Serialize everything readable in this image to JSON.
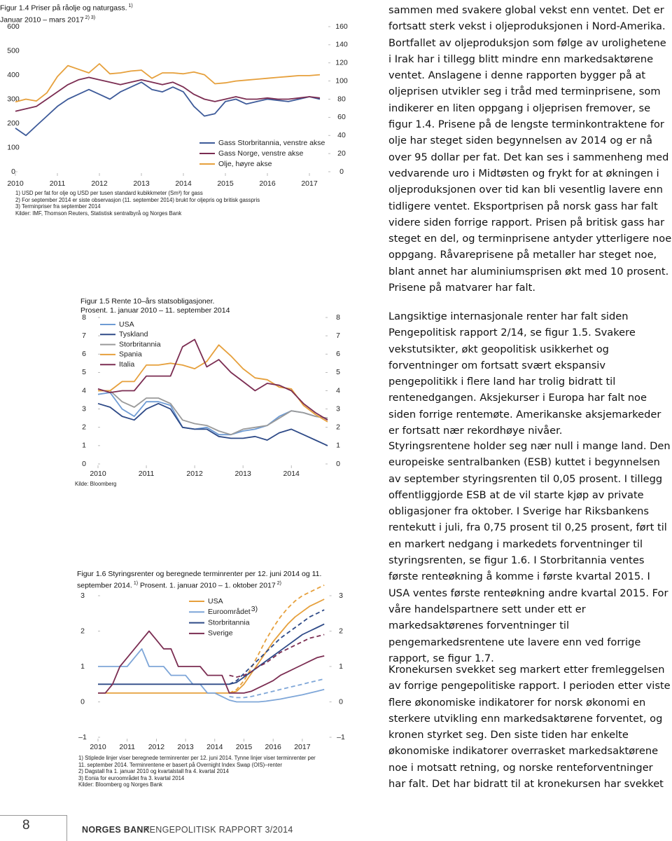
{
  "chart_data": [
    {
      "type": "line",
      "title": "Figur 1.4 Priser på råolje og naturgass.",
      "title_note": "1)",
      "subtitle": "Januar 2010 – mars 2017",
      "subtitle_note": "2) 3)",
      "x": [
        2010,
        2010.25,
        2010.5,
        2010.75,
        2011,
        2011.25,
        2011.5,
        2011.75,
        2012,
        2012.25,
        2012.5,
        2012.75,
        2013,
        2013.25,
        2013.5,
        2013.75,
        2014,
        2014.25,
        2014.5,
        2014.75,
        2015,
        2015.25,
        2015.5,
        2015.75,
        2016,
        2016.25,
        2016.5,
        2016.75,
        2017,
        2017.25
      ],
      "xlim": [
        2010,
        2017.5
      ],
      "xticks": [
        2010,
        2011,
        2012,
        2013,
        2014,
        2015,
        2016,
        2017
      ],
      "ylim": [
        0,
        600
      ],
      "yticks": [
        0,
        100,
        200,
        300,
        400,
        500,
        600
      ],
      "y2lim": [
        0,
        160
      ],
      "y2ticks": [
        0,
        20,
        40,
        60,
        80,
        100,
        120,
        140,
        160
      ],
      "series": [
        {
          "name": "Gass Storbritannia, venstre akse",
          "color": "#3d5a99",
          "values": [
            180,
            150,
            190,
            230,
            270,
            300,
            320,
            340,
            320,
            300,
            330,
            350,
            370,
            340,
            330,
            350,
            330,
            270,
            230,
            240,
            290,
            300,
            280,
            290,
            300,
            295,
            290,
            300,
            310,
            300
          ]
        },
        {
          "name": "Gass Norge, venstre akse",
          "color": "#7b2d52",
          "values": [
            250,
            260,
            270,
            300,
            330,
            360,
            380,
            390,
            380,
            370,
            360,
            370,
            380,
            370,
            360,
            370,
            350,
            320,
            300,
            290,
            300,
            310,
            300,
            300,
            305,
            300,
            300,
            305,
            310,
            305
          ]
        },
        {
          "name": "Olje, høyre akse",
          "color": "#e6a03c",
          "axis": "y2",
          "values": [
            77,
            80,
            78,
            87,
            105,
            117,
            113,
            109,
            119,
            108,
            109,
            111,
            112,
            103,
            109,
            109,
            108,
            110,
            107,
            97,
            98,
            100,
            101,
            102,
            103,
            104,
            105,
            106,
            106,
            107
          ]
        }
      ],
      "notes": [
        "1) USD per fat for olje og USD per tusen standard kubikkmeter (Sm³) for gass",
        "2) For september 2014 er siste observasjon (11. september 2014) brukt for oljepris og britisk gasspris",
        "3) Terminpriser fra september 2014"
      ],
      "source": "Kilder: IMF, Thomson Reuters, Statistisk sentralbyrå og Norges Bank"
    },
    {
      "type": "line",
      "title": "Figur 1.5 Rente 10–års statsobligasjoner.",
      "subtitle": "Prosent. 1. januar 2010 – 11. september 2014",
      "x": [
        2010,
        2010.25,
        2010.5,
        2010.75,
        2011,
        2011.25,
        2011.5,
        2011.75,
        2012,
        2012.25,
        2012.5,
        2012.75,
        2013,
        2013.25,
        2013.5,
        2013.75,
        2014,
        2014.25,
        2014.5,
        2014.75
      ],
      "xlim": [
        2010,
        2014.75
      ],
      "xticks": [
        2010,
        2011,
        2012,
        2013,
        2014
      ],
      "ylim": [
        0,
        8
      ],
      "yticks": [
        0,
        1,
        2,
        3,
        4,
        5,
        6,
        7,
        8
      ],
      "y2lim": [
        0,
        8
      ],
      "y2ticks": [
        0,
        1,
        2,
        3,
        4,
        5,
        6,
        7,
        8
      ],
      "series": [
        {
          "name": "USA",
          "color": "#6e9bd4",
          "values": [
            3.8,
            3.9,
            3.0,
            2.6,
            3.4,
            3.4,
            3.2,
            2.0,
            1.9,
            2.0,
            1.6,
            1.6,
            1.8,
            1.9,
            2.1,
            2.6,
            2.9,
            2.8,
            2.6,
            2.5
          ]
        },
        {
          "name": "Tyskland",
          "color": "#2e4a87",
          "values": [
            3.3,
            3.1,
            2.6,
            2.4,
            3.0,
            3.3,
            3.0,
            2.0,
            1.9,
            1.9,
            1.5,
            1.4,
            1.4,
            1.5,
            1.3,
            1.7,
            1.9,
            1.6,
            1.3,
            1.0
          ]
        },
        {
          "name": "Storbritannia",
          "color": "#9a9a9a",
          "values": [
            4.0,
            4.0,
            3.4,
            3.1,
            3.6,
            3.6,
            3.3,
            2.4,
            2.2,
            2.1,
            1.8,
            1.6,
            1.9,
            2.0,
            2.1,
            2.5,
            2.9,
            2.8,
            2.6,
            2.5
          ]
        },
        {
          "name": "Spania",
          "color": "#e6a03c",
          "values": [
            4.0,
            4.0,
            4.5,
            4.5,
            5.4,
            5.4,
            5.5,
            5.4,
            5.2,
            5.6,
            6.5,
            5.9,
            5.2,
            4.7,
            4.6,
            4.2,
            4.1,
            3.2,
            2.7,
            2.3
          ]
        },
        {
          "name": "Italia",
          "color": "#7b2d52",
          "values": [
            4.1,
            3.9,
            4.0,
            4.0,
            4.8,
            4.8,
            4.8,
            6.4,
            6.8,
            5.3,
            5.7,
            5.0,
            4.5,
            4.0,
            4.4,
            4.3,
            4.0,
            3.3,
            2.8,
            2.4
          ]
        }
      ],
      "source": "Kilde: Bloomberg"
    },
    {
      "type": "line",
      "title": "Figur 1.6 Styringsrenter og beregnede terminrenter per 12. juni 2014 og 11. september 2014.",
      "title_note": "1)",
      "subtitle": "Prosent. 1. januar 2010 – 1. oktober 2017",
      "subtitle_note": "2)",
      "x": [
        2010,
        2010.25,
        2010.5,
        2010.75,
        2011,
        2011.25,
        2011.5,
        2011.75,
        2012,
        2012.25,
        2012.5,
        2012.75,
        2013,
        2013.25,
        2013.5,
        2013.75,
        2014,
        2014.25,
        2014.5,
        2014.75,
        2015,
        2015.25,
        2015.5,
        2015.75,
        2016,
        2016.25,
        2016.5,
        2016.75,
        2017,
        2017.25,
        2017.5,
        2017.75
      ],
      "xlim": [
        2010,
        2018
      ],
      "xticks": [
        2010,
        2011,
        2012,
        2013,
        2014,
        2015,
        2016,
        2017
      ],
      "ylim": [
        -1,
        3
      ],
      "yticks": [
        {
          "value": -1,
          "label": "–1"
        },
        0,
        1,
        2,
        3
      ],
      "y2lim": [
        -1,
        3
      ],
      "y2ticks": [
        {
          "value": -1,
          "label": "–1"
        },
        0,
        1,
        2,
        3
      ],
      "series": [
        {
          "name": "USA",
          "color": "#e6a03c",
          "values": [
            0.25,
            0.25,
            0.25,
            0.25,
            0.25,
            0.25,
            0.25,
            0.25,
            0.25,
            0.25,
            0.25,
            0.25,
            0.25,
            0.25,
            0.25,
            0.25,
            0.25,
            0.25,
            0.25,
            0.3,
            0.5,
            0.8,
            1.1,
            1.4,
            1.7,
            1.95,
            2.2,
            2.4,
            2.55,
            2.7,
            2.8,
            2.9
          ],
          "forward_values": [
            null,
            null,
            null,
            null,
            null,
            null,
            null,
            null,
            null,
            null,
            null,
            null,
            null,
            null,
            null,
            null,
            null,
            null,
            0.25,
            0.35,
            0.6,
            0.95,
            1.35,
            1.75,
            2.1,
            2.4,
            2.65,
            2.85,
            3.0,
            3.1,
            3.2,
            3.3
          ]
        },
        {
          "name": "Euroområdet",
          "name_note": "3)",
          "color": "#7ea6d8",
          "values": [
            1.0,
            1.0,
            1.0,
            1.0,
            1.0,
            1.25,
            1.5,
            1.0,
            1.0,
            1.0,
            0.75,
            0.75,
            0.75,
            0.5,
            0.5,
            0.25,
            0.25,
            0.15,
            0.05,
            0,
            0,
            0,
            0,
            0.02,
            0.05,
            0.08,
            0.12,
            0.16,
            0.2,
            0.25,
            0.3,
            0.35
          ],
          "forward_values": [
            null,
            null,
            null,
            null,
            null,
            null,
            null,
            null,
            null,
            null,
            null,
            null,
            null,
            null,
            null,
            null,
            null,
            null,
            0.15,
            0.12,
            0.12,
            0.15,
            0.2,
            0.25,
            0.3,
            0.35,
            0.4,
            0.45,
            0.5,
            0.55,
            0.6,
            0.65
          ]
        },
        {
          "name": "Storbritannia",
          "color": "#2e4a87",
          "values": [
            0.5,
            0.5,
            0.5,
            0.5,
            0.5,
            0.5,
            0.5,
            0.5,
            0.5,
            0.5,
            0.5,
            0.5,
            0.5,
            0.5,
            0.5,
            0.5,
            0.5,
            0.5,
            0.5,
            0.55,
            0.7,
            0.85,
            1.0,
            1.15,
            1.3,
            1.45,
            1.6,
            1.75,
            1.9,
            2.0,
            2.1,
            2.2
          ],
          "forward_values": [
            null,
            null,
            null,
            null,
            null,
            null,
            null,
            null,
            null,
            null,
            null,
            null,
            null,
            null,
            null,
            null,
            null,
            null,
            0.5,
            0.6,
            0.8,
            1.0,
            1.2,
            1.4,
            1.6,
            1.8,
            1.95,
            2.1,
            2.25,
            2.4,
            2.5,
            2.6
          ]
        },
        {
          "name": "Sverige",
          "color": "#7b2d52",
          "values": [
            0.25,
            0.25,
            0.5,
            1.0,
            1.25,
            1.5,
            1.75,
            2.0,
            1.75,
            1.5,
            1.5,
            1.0,
            1.0,
            1.0,
            1.0,
            0.75,
            0.75,
            0.75,
            0.25,
            0.25,
            0.25,
            0.3,
            0.4,
            0.5,
            0.6,
            0.75,
            0.85,
            0.95,
            1.05,
            1.15,
            1.25,
            1.3
          ],
          "forward_values": [
            null,
            null,
            null,
            null,
            null,
            null,
            null,
            null,
            null,
            null,
            null,
            null,
            null,
            null,
            null,
            null,
            null,
            null,
            0.75,
            0.7,
            0.75,
            0.85,
            1.0,
            1.1,
            1.25,
            1.4,
            1.5,
            1.6,
            1.7,
            1.8,
            1.85,
            1.9
          ]
        }
      ],
      "notes": [
        "1) Stiplede linjer viser beregnede terminrenter per 12. juni 2014. Tynne linjer viser terminrenter per 11. september 2014. Terminrentene er basert på Overnight Index Swap (OIS)–renter",
        "2) Dagstall fra 1. januar 2010 og kvartalstall fra 4. kvartal 2014",
        "3) Eonia for euroområdet fra 3. kvartal 2014"
      ],
      "source": "Kilder: Bloomberg og Norges Bank"
    }
  ],
  "body": {
    "paragraphs": [
      "sammen med svakere global vekst enn ventet. Det er fortsatt sterk vekst i oljeproduksjonen i Nord-Amerika. Bortfallet av oljeproduksjon som følge av urolighetene i Irak har i tillegg blitt mindre enn markedsaktørene ventet. Anslagene i denne rapporten bygger på at oljeprisen utvikler seg i tråd med terminprisene, som indikerer en liten oppgang i oljeprisen fremover, se figur 1.4. Prisene på de lengste terminkontraktene for olje har steget siden begynnelsen av 2014 og er nå over 95 dollar per fat. Det kan ses i sammenheng med vedvarende uro i Midtøsten og frykt for at økningen i oljeproduksjonen over tid kan bli vesentlig lavere enn tidligere ventet. Eksportprisen på norsk gass har falt videre siden forrige rapport. Prisen på britisk gass har steget en del, og terminprisene antyder ytterligere noe oppgang. Råvareprisene på metaller har steget noe, blant annet har aluminiumsprisen økt med 10 prosent. Prisene på matvarer har falt.",
      "Langsiktige internasjonale renter har falt siden Pengepolitisk rapport 2/14, se figur 1.5. Svakere vekstutsikter, økt geopolitisk usikkerhet og forventninger om fortsatt svært ekspansiv pengepolitikk i flere land har trolig bidratt til rentenedgangen. Aksjekurser i Europa har falt noe siden forrige rentemøte. Amerikanske aksjemarkeder er fortsatt nær rekordhøye nivåer.",
      "Styringsrentene holder seg nær null i mange land. Den europeiske sentralbanken (ESB) kuttet i begynnelsen av september styringsrenten til 0,05 prosent. I tillegg offentliggjorde ESB at de vil starte kjøp av private obligasjoner fra oktober. I Sverige har Riksbankens rentekutt i juli, fra 0,75 prosent til 0,25 prosent, ført til en markert nedgang i markedets forventninger til styringsrenten, se figur 1.6. I Storbritannia ventes første renteøkning å komme i første kvartal 2015. I USA ventes første renteøkning andre kvartal 2015. For våre handelspartnere sett under ett er markedsaktørenes forventninger til pengemarkedsrentene ute lavere enn ved forrige rapport, se figur 1.7.",
      "Kronekursen svekket seg markert etter fremleggelsen av forrige pengepolitiske rapport. I perioden etter viste flere økonomiske indikatorer for norsk økonomi en sterkere utvikling enn markedsaktørene forventet, og kronen styrket seg. Den siste tiden har enkelte økonomiske indikatorer overrasket markedsaktørene noe i motsatt retning, og norske renteforventninger har falt. Det har bidratt til at kronekursen har svekket"
    ]
  },
  "footer": {
    "page_number": "8",
    "brand": "NORGES BANK",
    "publication": "PENGEPOLITISK RAPPORT 3/2014"
  }
}
